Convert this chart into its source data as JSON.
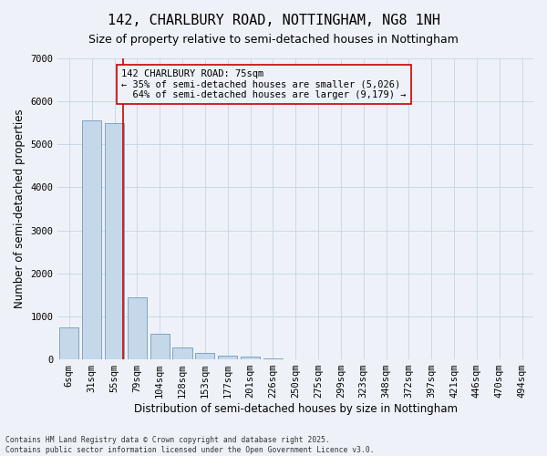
{
  "title": "142, CHARLBURY ROAD, NOTTINGHAM, NG8 1NH",
  "subtitle": "Size of property relative to semi-detached houses in Nottingham",
  "xlabel": "Distribution of semi-detached houses by size in Nottingham",
  "ylabel": "Number of semi-detached properties",
  "property_label": "142 CHARLBURY ROAD: 75sqm",
  "pct_smaller": 35,
  "pct_larger": 64,
  "count_smaller": 5026,
  "count_larger": 9179,
  "bins": [
    "6sqm",
    "31sqm",
    "55sqm",
    "79sqm",
    "104sqm",
    "128sqm",
    "153sqm",
    "177sqm",
    "201sqm",
    "226sqm",
    "250sqm",
    "275sqm",
    "299sqm",
    "323sqm",
    "348sqm",
    "372sqm",
    "397sqm",
    "421sqm",
    "446sqm",
    "470sqm",
    "494sqm"
  ],
  "values": [
    750,
    5550,
    5500,
    1450,
    600,
    270,
    150,
    90,
    55,
    15,
    5,
    2,
    1,
    0,
    0,
    0,
    0,
    0,
    0,
    0
  ],
  "bar_color": "#c5d8ea",
  "bar_edge_color": "#5a8ab0",
  "vline_color": "#cc0000",
  "annotation_box_color": "#cc0000",
  "grid_color": "#c8d8e8",
  "background_color": "#eef2f8",
  "footer_text": "Contains HM Land Registry data © Crown copyright and database right 2025.\nContains public sector information licensed under the Open Government Licence v3.0.",
  "ylim": [
    0,
    7000
  ],
  "yticks": [
    0,
    1000,
    2000,
    3000,
    4000,
    5000,
    6000,
    7000
  ],
  "title_fontsize": 11,
  "subtitle_fontsize": 9,
  "axis_label_fontsize": 8.5,
  "tick_fontsize": 7.5,
  "annotation_fontsize": 7.5,
  "vline_x": 2.4
}
